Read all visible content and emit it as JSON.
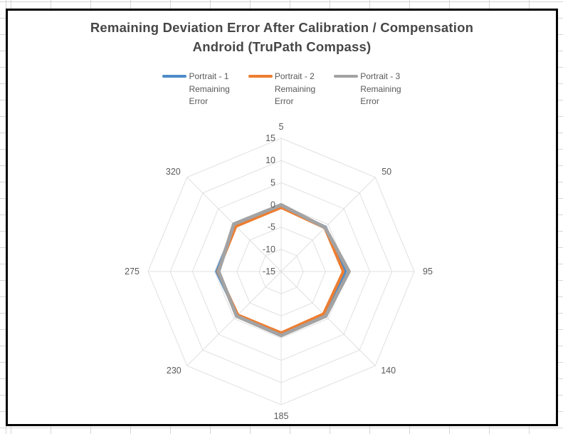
{
  "chart_data": {
    "type": "line",
    "subtype": "radar",
    "title": "Remaining Deviation Error After Calibration / Compensation Android (TruPath Compass)",
    "title_lines": [
      "Remaining Deviation Error After Calibration / Compensation",
      "Android (TruPath Compass)"
    ],
    "categories": [
      "5",
      "50",
      "95",
      "140",
      "185",
      "230",
      "275",
      "320"
    ],
    "axis": {
      "min": -15,
      "max": 15,
      "step": 5,
      "tick_labels": [
        "15",
        "10",
        "5",
        "0",
        "-5",
        "-10",
        "-15"
      ]
    },
    "series": [
      {
        "name": "Portrait - 1 Remaining Error",
        "label_lines": [
          "Portrait - 1",
          "Remaining",
          "Error"
        ],
        "color": "#4E8BC8",
        "values": [
          -0.2,
          -0.8,
          -0.5,
          -1.0,
          -0.8,
          -1.0,
          -0.4,
          -0.3
        ]
      },
      {
        "name": "Portrait - 2 Remaining Error",
        "label_lines": [
          "Portrait - 2",
          "Remaining",
          "Error"
        ],
        "color": "#ED7D31",
        "values": [
          -0.6,
          -1.1,
          -1.0,
          -1.5,
          -1.2,
          -1.2,
          -0.7,
          -0.6
        ]
      },
      {
        "name": "Portrait - 3 Remaining Error",
        "label_lines": [
          "Portrait - 3",
          "Remaining",
          "Error"
        ],
        "color": "#A3A3A3",
        "values": [
          0.0,
          -1.0,
          0.3,
          -0.8,
          -0.6,
          -0.8,
          -0.9,
          0.1
        ]
      }
    ],
    "legend_position": "top",
    "grid": true,
    "grid_color": "#E0E0E0",
    "label_color": "#595959",
    "title_color": "#474747"
  }
}
